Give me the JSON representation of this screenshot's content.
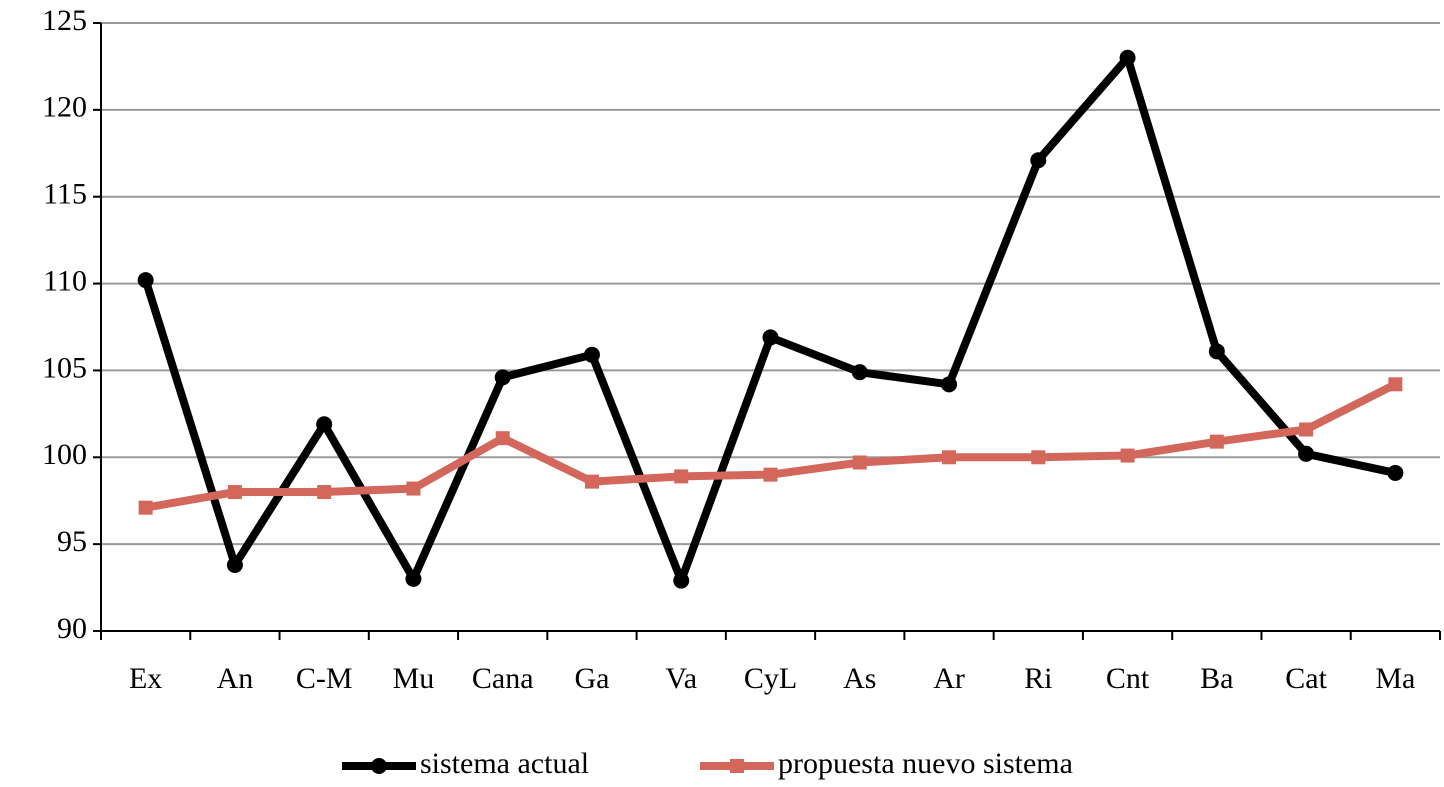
{
  "chart_data": {
    "type": "line",
    "categories": [
      "Ex",
      "An",
      "C-M",
      "Mu",
      "Cana",
      "Ga",
      "Va",
      "CyL",
      "As",
      "Ar",
      "Ri",
      "Cnt",
      "Ba",
      "Cat",
      "Ma"
    ],
    "series": [
      {
        "name": "sistema actual",
        "color": "#000000",
        "marker": "circle",
        "values": [
          110.2,
          93.8,
          101.9,
          93.0,
          104.6,
          105.9,
          92.9,
          106.9,
          104.9,
          104.2,
          117.1,
          123.0,
          106.1,
          100.2,
          99.1
        ]
      },
      {
        "name": "propuesta nuevo sistema",
        "color": "#d4675c",
        "marker": "square",
        "values": [
          97.1,
          98.0,
          98.0,
          98.2,
          101.1,
          98.6,
          98.9,
          99.0,
          99.7,
          100.0,
          100.0,
          100.1,
          100.9,
          101.6,
          104.2
        ]
      }
    ],
    "ylim": [
      90,
      125
    ],
    "yticks": [
      90,
      95,
      100,
      105,
      110,
      115,
      120,
      125
    ],
    "grid": true
  }
}
